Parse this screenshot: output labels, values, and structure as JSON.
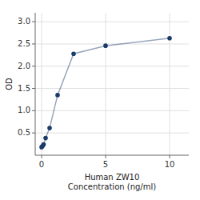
{
  "chart_data": {
    "type": "line",
    "xlabel": "Human ZW10\nConcentration (ng/ml)",
    "ylabel": "OD",
    "x": [
      0.0,
      0.078,
      0.156,
      0.313,
      0.625,
      1.25,
      2.5,
      5.0,
      10.0
    ],
    "values": [
      0.182,
      0.205,
      0.243,
      0.385,
      0.609,
      1.35,
      2.28,
      2.46,
      2.63
    ],
    "color": "#1a3a6a",
    "marker": "circle",
    "xlim": [
      -0.5,
      11.5
    ],
    "ylim": [
      0.0,
      3.2
    ],
    "xticks": [
      0,
      5,
      10
    ],
    "yticks": [
      0.5,
      {
        "value": 1.0,
        "label": "1.0"
      },
      1.5,
      {
        "value": 2.0,
        "label": "2.0"
      },
      2.5,
      {
        "value": 3.0,
        "label": "3.0"
      }
    ],
    "grid": true
  }
}
